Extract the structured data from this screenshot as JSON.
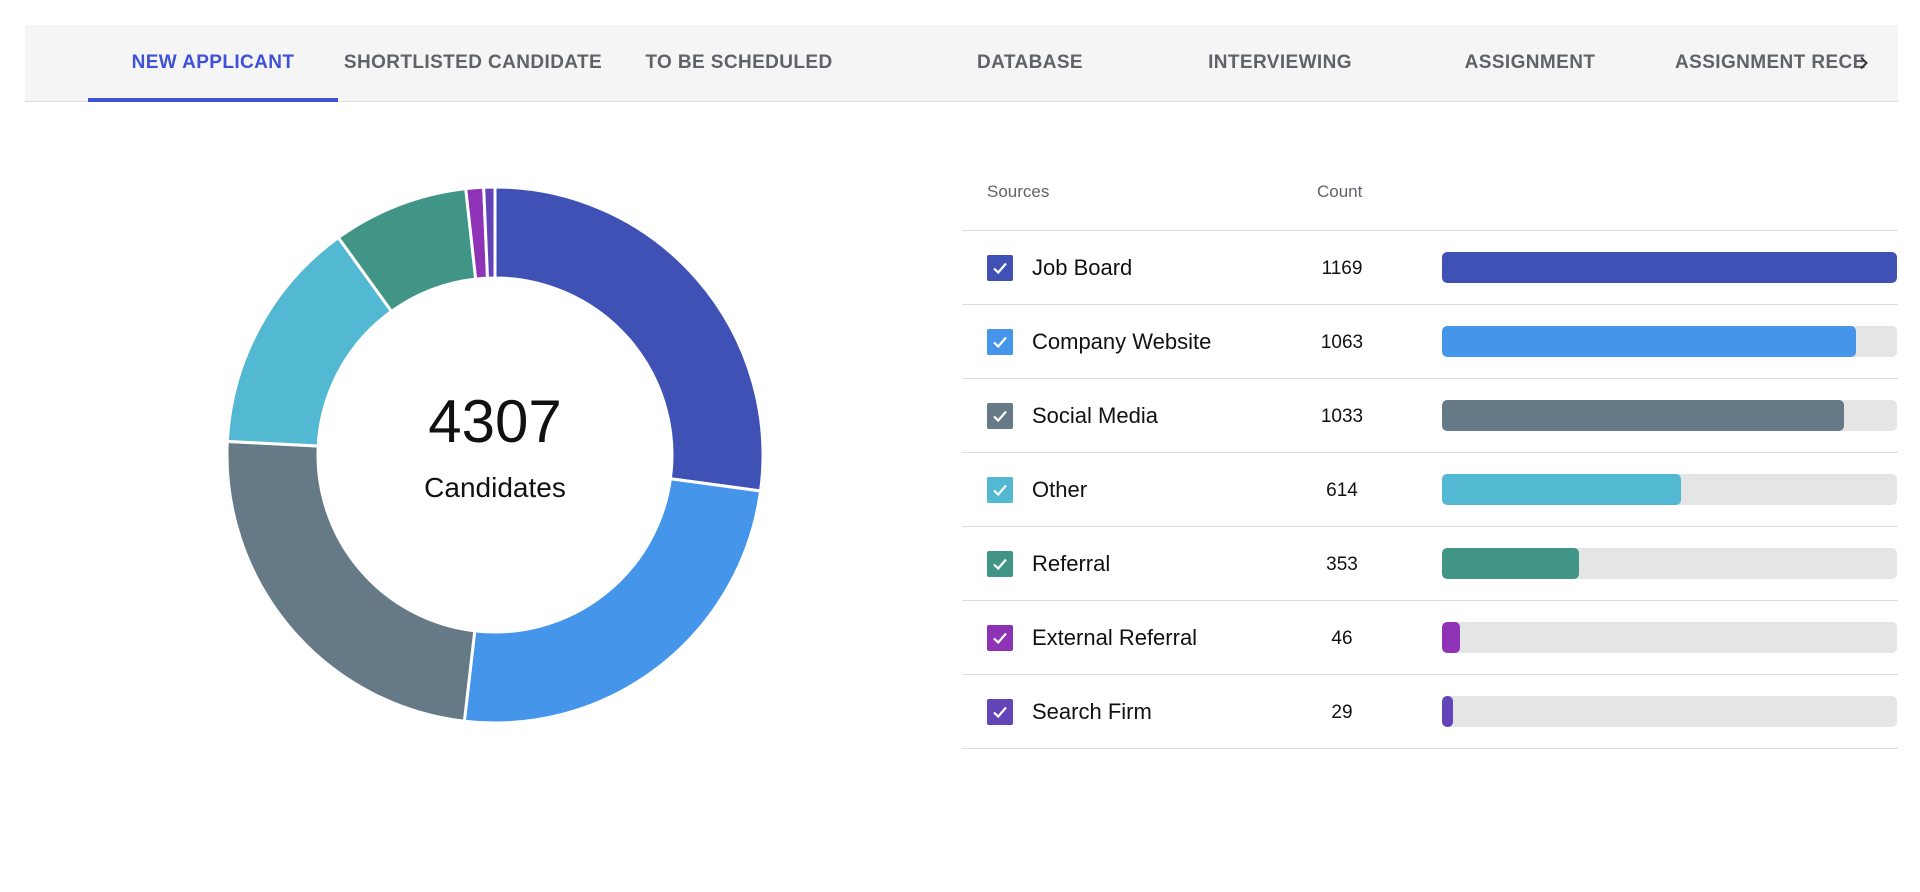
{
  "tabs": [
    {
      "label": "NEW APPLICANT",
      "active": true
    },
    {
      "label": "SHORTLISTED CANDIDATE",
      "active": false
    },
    {
      "label": "TO BE SCHEDULED",
      "active": false
    },
    {
      "label": "DATABASE",
      "active": false
    },
    {
      "label": "INTERVIEWING",
      "active": false
    },
    {
      "label": "ASSIGNMENT",
      "active": false
    },
    {
      "label": "ASSIGNMENT RECE",
      "active": false
    }
  ],
  "tab_scroll_icon": "chevron-right-icon",
  "summary": {
    "total": "4307",
    "caption": "Candidates"
  },
  "table": {
    "headers": {
      "source": "Sources",
      "count": "Count"
    },
    "rows": [
      {
        "label": "Job Board",
        "count": "1169",
        "color": "#3f51b5",
        "checked": true
      },
      {
        "label": "Company Website",
        "count": "1063",
        "color": "#4595ea",
        "checked": true
      },
      {
        "label": "Social Media",
        "count": "1033",
        "color": "#657986",
        "checked": true
      },
      {
        "label": "Other",
        "count": "614",
        "color": "#53b8d2",
        "checked": true
      },
      {
        "label": "Referral",
        "count": "353",
        "color": "#409587",
        "checked": true
      },
      {
        "label": "External Referral",
        "count": "46",
        "color": "#8e32b6",
        "checked": true
      },
      {
        "label": "Search Firm",
        "count": "29",
        "color": "#6244b8",
        "checked": true
      }
    ]
  },
  "chart_data": {
    "type": "pie",
    "donut": true,
    "categories": [
      "Job Board",
      "Company Website",
      "Social Media",
      "Other",
      "Referral",
      "External Referral",
      "Search Firm"
    ],
    "values": [
      1169,
      1063,
      1033,
      614,
      353,
      46,
      29
    ],
    "colors": [
      "#3f51b5",
      "#4595ea",
      "#657986",
      "#53b8d2",
      "#409587",
      "#8e32b6",
      "#6244b8"
    ],
    "bar_scale_max": 1169
  }
}
